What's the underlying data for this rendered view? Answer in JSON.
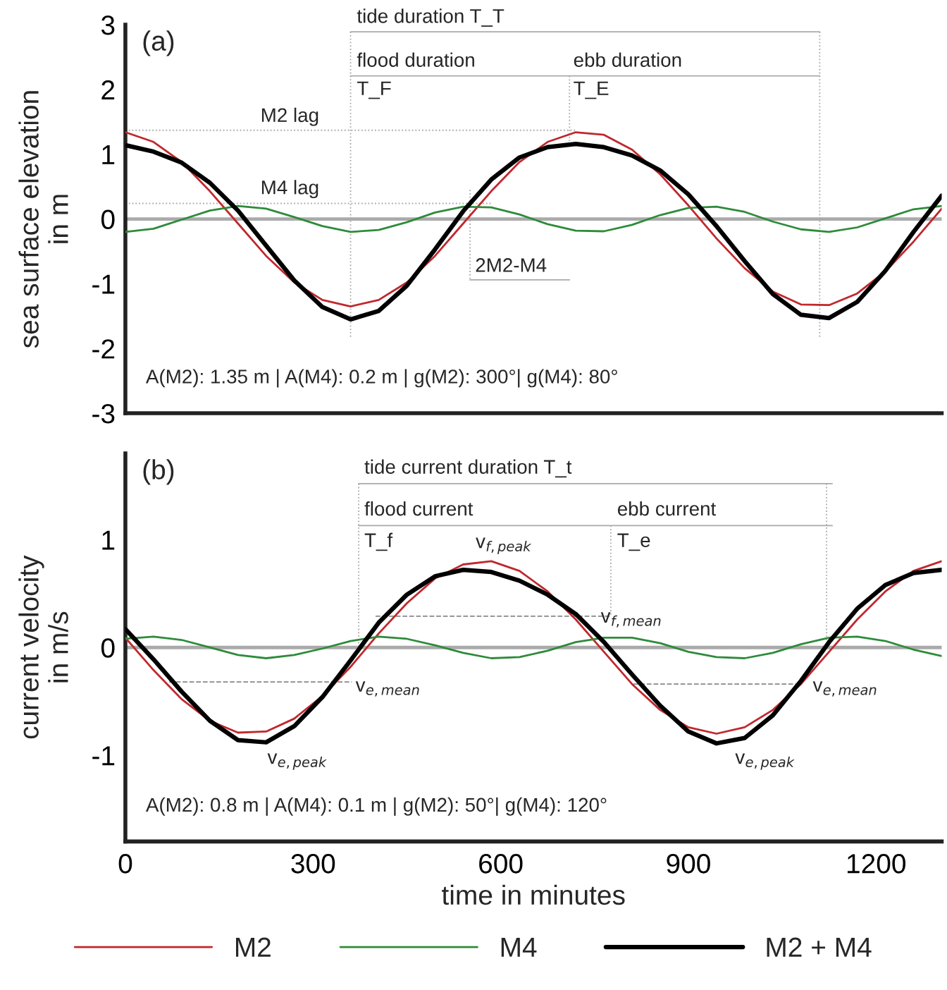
{
  "chart_data": [
    {
      "type": "line",
      "title": "(a)",
      "ylabel": "sea surface elevation\nin m",
      "x": [
        0,
        45,
        90,
        135,
        180,
        225,
        270,
        315,
        360,
        405,
        450,
        495,
        540,
        585,
        630,
        675,
        720,
        765,
        810,
        855,
        900,
        945,
        990,
        1035,
        1080,
        1125,
        1170,
        1215,
        1260,
        1305
      ],
      "series": [
        {
          "name": "M2",
          "color": "#c0282d",
          "values": [
            1.34,
            1.19,
            0.88,
            0.43,
            -0.07,
            -0.57,
            -0.98,
            -1.25,
            -1.35,
            -1.25,
            -0.98,
            -0.57,
            -0.07,
            0.43,
            0.88,
            1.19,
            1.34,
            1.3,
            1.07,
            0.69,
            0.21,
            -0.3,
            -0.76,
            -1.12,
            -1.32,
            -1.33,
            -1.15,
            -0.81,
            -0.35,
            0.16
          ]
        },
        {
          "name": "M4",
          "color": "#2e8b3a",
          "values": [
            -0.2,
            -0.15,
            -0.01,
            0.13,
            0.2,
            0.16,
            0.03,
            -0.11,
            -0.2,
            -0.17,
            -0.05,
            0.1,
            0.19,
            0.18,
            0.07,
            -0.08,
            -0.18,
            -0.19,
            -0.09,
            0.06,
            0.17,
            0.19,
            0.11,
            -0.04,
            -0.16,
            -0.2,
            -0.13,
            0.01,
            0.15,
            0.2
          ]
        },
        {
          "name": "M2 + M4",
          "color": "#000000",
          "values": [
            1.14,
            1.04,
            0.87,
            0.56,
            0.13,
            -0.41,
            -0.95,
            -1.36,
            -1.55,
            -1.42,
            -1.03,
            -0.47,
            0.12,
            0.61,
            0.95,
            1.11,
            1.16,
            1.11,
            0.98,
            0.75,
            0.38,
            -0.11,
            -0.65,
            -1.16,
            -1.48,
            -1.53,
            -1.28,
            -0.8,
            -0.2,
            0.36
          ]
        },
        {
          "color": "#aaaaaa",
          "line_style": "solid",
          "x": [
            360,
            1110
          ],
          "values": [
            2.89,
            2.89
          ]
        },
        {
          "color": "#aaaaaa",
          "line_style": "solid",
          "x": [
            360,
            1110
          ],
          "values": [
            2.21,
            2.21
          ]
        },
        {
          "color": "#aaaaaa",
          "line_style": "solid",
          "x": [
            551,
            710
          ],
          "values": [
            -0.94,
            -0.94
          ]
        },
        {
          "color": "#aaaaaa",
          "line_style": "dotted",
          "x": [
            0,
            722
          ],
          "values": [
            1.37,
            1.37
          ]
        },
        {
          "color": "#aaaaaa",
          "line_style": "dotted",
          "x": [
            0,
            587
          ],
          "values": [
            0.24,
            0.24
          ]
        },
        {
          "color": "#aaaaaa",
          "line_style": "dotted",
          "x": [
            360,
            360
          ],
          "values": [
            2.89,
            -1.85
          ]
        },
        {
          "color": "#aaaaaa",
          "line_style": "dotted",
          "x": [
            1110,
            1110
          ],
          "values": [
            2.89,
            -1.85
          ]
        },
        {
          "color": "#aaaaaa",
          "line_style": "dotted",
          "x": [
            710,
            710
          ],
          "values": [
            2.21,
            1.15
          ]
        },
        {
          "color": "#aaaaaa",
          "line_style": "dotted",
          "x": [
            551,
            551
          ],
          "values": [
            0.45,
            -0.94
          ]
        }
      ],
      "annotations": [
        "tide duration T_T",
        "flood duration",
        "ebb duration",
        "T_F",
        "T_E",
        "M2 lag",
        "M4 lag",
        "2M2-M4",
        "A(M2): 1.35 m | A(M4): 0.2 m | g(M2): 300°| g(M4): 80°"
      ],
      "ref_lines": [
        {
          "axis": "y",
          "value": 0,
          "color": "#aaaaaa"
        }
      ],
      "xlim": [
        0,
        1305
      ],
      "ylim": [
        -3,
        3
      ],
      "xticks": [
        0,
        300,
        600,
        900,
        1200
      ],
      "yticks": [
        -3,
        -2,
        -1,
        0,
        1,
        2,
        3
      ],
      "tick_labels": "y",
      "legend": "bottom"
    },
    {
      "type": "line",
      "title": "(b)",
      "xlabel": "time in minutes",
      "ylabel": "current velocity\nin m/s",
      "x": [
        0,
        45,
        90,
        135,
        180,
        225,
        270,
        315,
        360,
        405,
        450,
        495,
        540,
        585,
        630,
        675,
        720,
        765,
        810,
        855,
        900,
        945,
        990,
        1035,
        1080,
        1125,
        1170,
        1215,
        1260,
        1305
      ],
      "series": [
        {
          "name": "M2",
          "color": "#c0282d",
          "values": [
            0.09,
            -0.21,
            -0.48,
            -0.68,
            -0.79,
            -0.78,
            -0.66,
            -0.45,
            -0.18,
            0.13,
            0.41,
            0.64,
            0.77,
            0.8,
            0.71,
            0.52,
            0.26,
            -0.04,
            -0.34,
            -0.58,
            -0.74,
            -0.8,
            -0.74,
            -0.58,
            -0.34,
            -0.04,
            0.26,
            0.52,
            0.71,
            0.8
          ]
        },
        {
          "name": "M4",
          "color": "#2e8b3a",
          "values": [
            0.08,
            0.1,
            0.07,
            0.0,
            -0.07,
            -0.1,
            -0.07,
            -0.01,
            0.06,
            0.1,
            0.08,
            0.02,
            -0.05,
            -0.1,
            -0.09,
            -0.03,
            0.05,
            0.09,
            0.09,
            0.04,
            -0.04,
            -0.09,
            -0.1,
            -0.05,
            0.03,
            0.09,
            0.1,
            0.06,
            -0.02,
            -0.08
          ]
        },
        {
          "name": "M2 + M4",
          "color": "#000000",
          "values": [
            0.17,
            -0.11,
            -0.41,
            -0.68,
            -0.86,
            -0.88,
            -0.73,
            -0.46,
            -0.12,
            0.23,
            0.49,
            0.66,
            0.72,
            0.7,
            0.62,
            0.49,
            0.31,
            0.05,
            -0.25,
            -0.54,
            -0.78,
            -0.89,
            -0.84,
            -0.63,
            -0.31,
            0.05,
            0.36,
            0.58,
            0.69,
            0.72
          ]
        },
        {
          "color": "#aaaaaa",
          "line_style": "solid",
          "x": [
            373,
            1130
          ],
          "values": [
            1.52,
            1.52
          ]
        },
        {
          "color": "#aaaaaa",
          "line_style": "solid",
          "x": [
            373,
            1130
          ],
          "values": [
            1.13,
            1.13
          ]
        },
        {
          "color": "#aaaaaa",
          "line_style": "dotted",
          "x": [
            373,
            373
          ],
          "values": [
            1.52,
            0.0
          ]
        },
        {
          "color": "#aaaaaa",
          "line_style": "dotted",
          "x": [
            776,
            776
          ],
          "values": [
            1.13,
            0.3
          ]
        },
        {
          "color": "#aaaaaa",
          "line_style": "dotted",
          "x": [
            1121,
            1121
          ],
          "values": [
            1.52,
            0.05
          ]
        },
        {
          "color": "#888888",
          "line_style": "dashed",
          "x": [
            400,
            776
          ],
          "values": [
            0.29,
            0.29
          ]
        },
        {
          "color": "#888888",
          "line_style": "dashed",
          "x": [
            70,
            362
          ],
          "values": [
            -0.32,
            -0.32
          ]
        },
        {
          "color": "#888888",
          "line_style": "dashed",
          "x": [
            812,
            1082
          ],
          "values": [
            -0.34,
            -0.34
          ]
        }
      ],
      "annotations": [
        "tide current duration T_t",
        "flood current",
        "ebb current",
        "T_f",
        "T_e",
        "v$_{f,peak}$",
        {
          "text": "v$_{f,mean}$",
          "x": 760,
          "y": 0.27
        },
        "v$_{e,mean}$",
        "v$_{e,mean}$",
        "v$_{e,peak}$",
        "v$_{e,peak}$",
        "A(M2): 0.8 m | A(M4): 0.1 m | g(M2): 50°| g(M4): 120°"
      ],
      "ref_lines": [
        {
          "axis": "y",
          "value": 0,
          "color": "#aaaaaa"
        }
      ],
      "xlim": [
        0,
        1305
      ],
      "ylim": [
        -1.8,
        1.8
      ],
      "xticks": [
        0,
        300,
        600,
        900,
        1200
      ],
      "yticks": [
        -1,
        0,
        1
      ],
      "legend": "bottom"
    }
  ]
}
